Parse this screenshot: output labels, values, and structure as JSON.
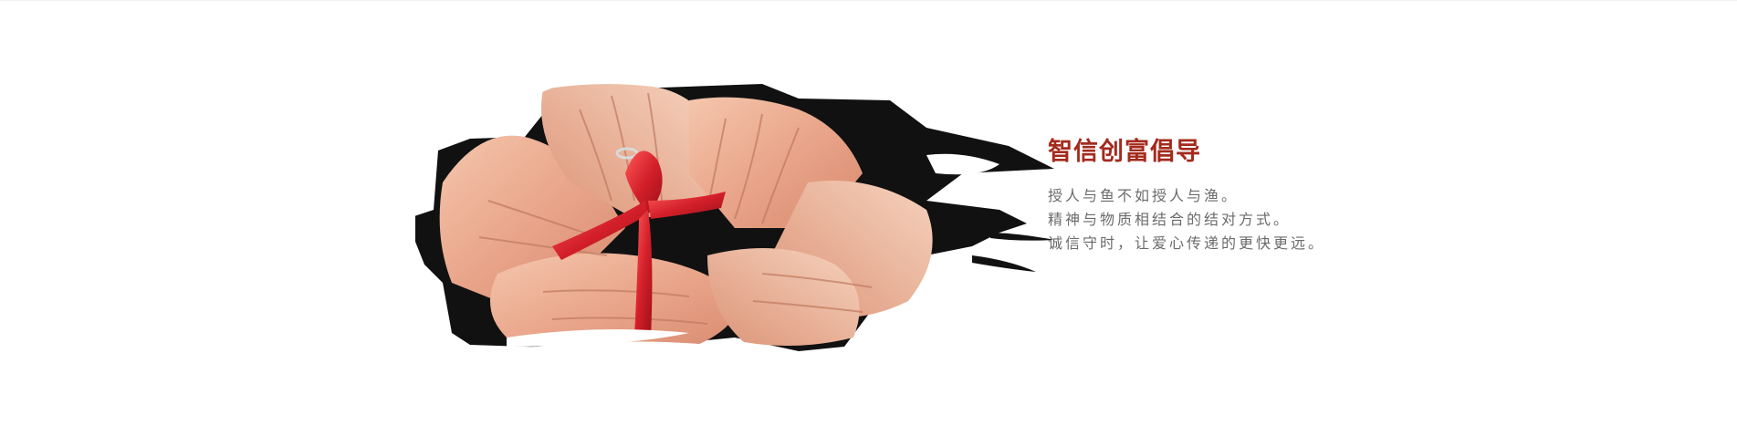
{
  "banner": {
    "image_alt": "hands with red ribbon",
    "headline": "智信创富倡导",
    "lines": [
      "授人与鱼不如授人与渔。",
      "精神与物质相结合的结对方式。",
      "诚信守时，让爱心传递的更快更远。"
    ],
    "colors": {
      "headline": "#a32a1c",
      "body": "#6b6b6b",
      "ribbon": "#d4202a",
      "ink": "#111111",
      "skin": "#e9a58a"
    }
  }
}
